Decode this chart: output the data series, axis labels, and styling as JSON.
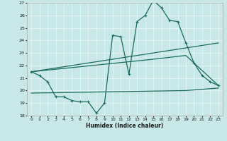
{
  "xlabel": "Humidex (Indice chaleur)",
  "xlim": [
    -0.5,
    23.5
  ],
  "ylim": [
    18,
    27
  ],
  "yticks": [
    18,
    19,
    20,
    21,
    22,
    23,
    24,
    25,
    26,
    27
  ],
  "xticks": [
    0,
    1,
    2,
    3,
    4,
    5,
    6,
    7,
    8,
    9,
    10,
    11,
    12,
    13,
    14,
    15,
    16,
    17,
    18,
    19,
    20,
    21,
    22,
    23
  ],
  "bg_color": "#c8e8e8",
  "grid_color": "#e8f4f4",
  "line_color": "#1a6b5a",
  "series1_x": [
    0,
    1,
    2,
    3,
    4,
    5,
    6,
    7,
    8,
    9,
    10,
    11,
    12,
    13,
    14,
    15,
    16,
    17,
    18,
    19,
    20,
    21,
    22,
    23
  ],
  "series1_y": [
    21.5,
    21.2,
    20.7,
    19.5,
    19.5,
    19.2,
    19.1,
    19.1,
    18.2,
    19.0,
    24.4,
    24.3,
    21.3,
    25.5,
    26.0,
    27.2,
    26.6,
    25.6,
    25.5,
    23.8,
    22.2,
    21.2,
    20.7,
    20.4
  ],
  "series2_x": [
    0,
    23
  ],
  "series2_y": [
    21.5,
    23.8
  ],
  "series3_x": [
    0,
    15,
    19,
    23
  ],
  "series3_y": [
    21.5,
    22.5,
    22.8,
    20.4
  ],
  "series4_x": [
    0,
    19,
    23
  ],
  "series4_y": [
    19.8,
    20.0,
    20.2
  ]
}
